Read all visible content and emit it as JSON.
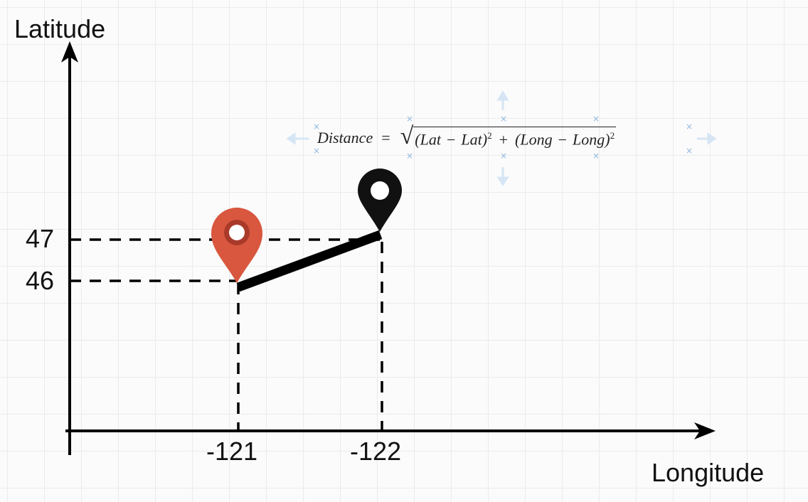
{
  "axes": {
    "y_title": "Latitude",
    "x_title": "Longitude"
  },
  "ticks": {
    "y": [
      "47",
      "46"
    ],
    "x": [
      "-121",
      "-122"
    ]
  },
  "formula": {
    "lhs": "Distance",
    "equals": "=",
    "term1": "(Lat",
    "minus1": "−",
    "term1b": "Lat)",
    "exp1": "2",
    "plus": "+",
    "term2": "(Long",
    "minus2": "−",
    "term2b": "Long)",
    "exp2": "2"
  },
  "markers": [
    {
      "name": "red-marker",
      "color": "#d9573f",
      "lat": 46,
      "long": -121
    },
    {
      "name": "black-marker",
      "color": "#111111",
      "lat": 47,
      "long": -122
    }
  ],
  "colors": {
    "axis": "#000000",
    "distance_line": "#000000",
    "selection_handles": "#8fb8e0"
  }
}
